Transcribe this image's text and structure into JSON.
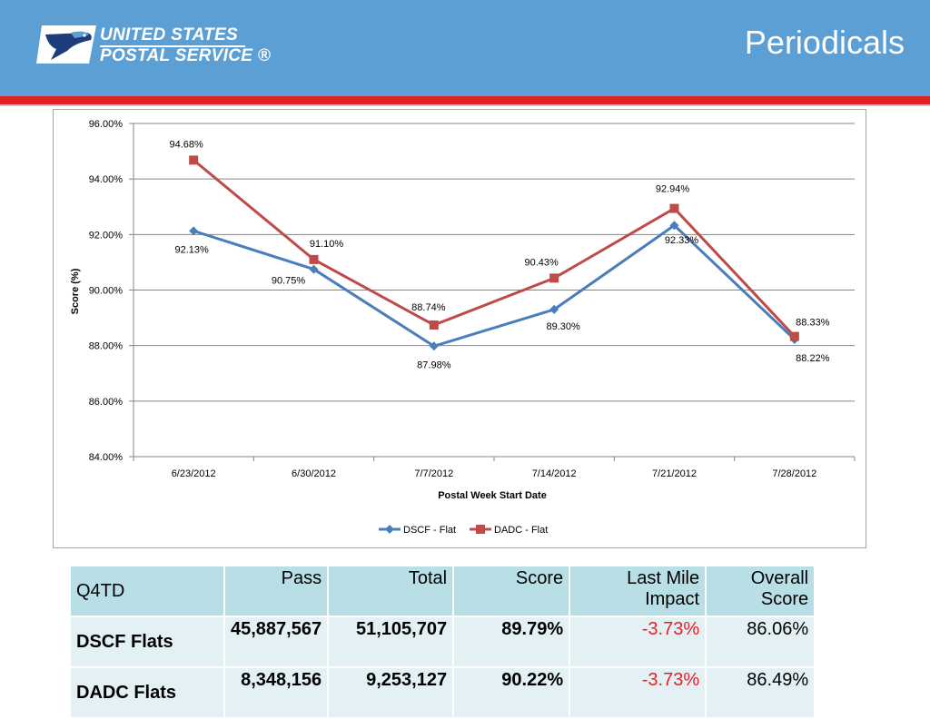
{
  "header": {
    "logo_line1": "UNITED STATES",
    "logo_line2": "POSTAL SERVICE ®",
    "title": "Periodicals"
  },
  "colors": {
    "banner": "#5b9fd4",
    "rule": "#e31f26",
    "dscf": "#4a7ebb",
    "dadc": "#be4b48"
  },
  "chart_data": {
    "type": "line",
    "title": "",
    "xlabel": "Postal Week Start Date",
    "ylabel": "Score (%)",
    "categories": [
      "6/23/2012",
      "6/30/2012",
      "7/7/2012",
      "7/14/2012",
      "7/21/2012",
      "7/28/2012"
    ],
    "ylim": [
      84,
      96
    ],
    "yticks": [
      "84.00%",
      "86.00%",
      "88.00%",
      "90.00%",
      "92.00%",
      "94.00%",
      "96.00%"
    ],
    "grid": true,
    "legend": "bottom",
    "series": [
      {
        "name": "DSCF - Flat",
        "color": "#4a7ebb",
        "marker": "diamond",
        "values": [
          92.13,
          90.75,
          87.98,
          89.3,
          92.33,
          88.22
        ],
        "labels": [
          "92.13%",
          "90.75%",
          "87.98%",
          "89.30%",
          "92.33%",
          "88.22%"
        ]
      },
      {
        "name": "DADC - Flat",
        "color": "#be4b48",
        "marker": "square",
        "values": [
          94.68,
          91.1,
          88.74,
          90.43,
          92.94,
          88.33
        ],
        "labels": [
          "94.68%",
          "91.10%",
          "88.74%",
          "90.43%",
          "92.94%",
          "88.33%"
        ]
      }
    ]
  },
  "table": {
    "headers": [
      "Q4TD",
      "Pass",
      "Total",
      "Score",
      "Last Mile Impact",
      "Overall Score"
    ],
    "rows": [
      [
        "DSCF Flats",
        "45,887,567",
        "51,105,707",
        "89.79%",
        "-3.73%",
        "86.06%"
      ],
      [
        "DADC Flats",
        "8,348,156",
        "9,253,127",
        "90.22%",
        "-3.73%",
        "86.49%"
      ]
    ]
  }
}
